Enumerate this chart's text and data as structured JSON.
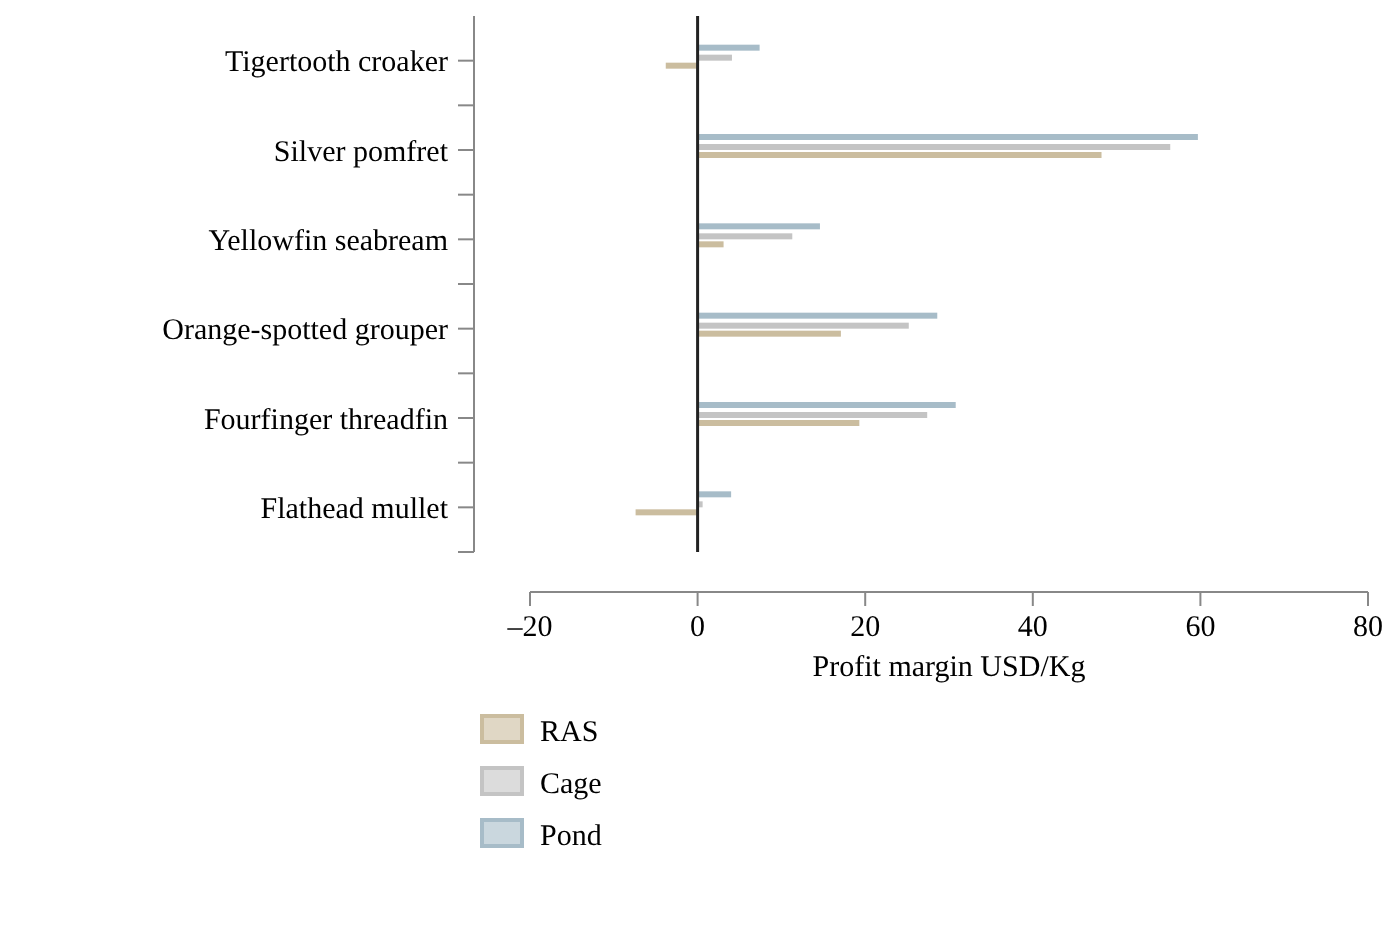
{
  "chart_data": {
    "type": "bar",
    "orientation": "horizontal",
    "xlabel": "Profit margin USD/Kg",
    "categories": [
      "Tigertooth croaker",
      "Silver pomfret",
      "Yellowfin seabream",
      "Orange-spotted grouper",
      "Fourfinger threadfin",
      "Flathead mullet"
    ],
    "series": [
      {
        "name": "RAS",
        "color": "#cbbd9f",
        "values": [
          -3.8,
          48.2,
          3.1,
          17.1,
          19.3,
          -7.4
        ]
      },
      {
        "name": "Cage",
        "color": "#c4c4c4",
        "values": [
          4.1,
          56.4,
          11.3,
          25.2,
          27.4,
          0.6
        ]
      },
      {
        "name": "Pond",
        "color": "#a7bcc8",
        "values": [
          7.4,
          59.7,
          14.6,
          28.6,
          30.8,
          4.0
        ]
      }
    ],
    "xlim": [
      -20,
      80
    ],
    "xticks": [
      {
        "value": -20,
        "label": "–20"
      },
      0,
      20,
      40,
      60,
      80
    ],
    "legend": "bottom"
  }
}
